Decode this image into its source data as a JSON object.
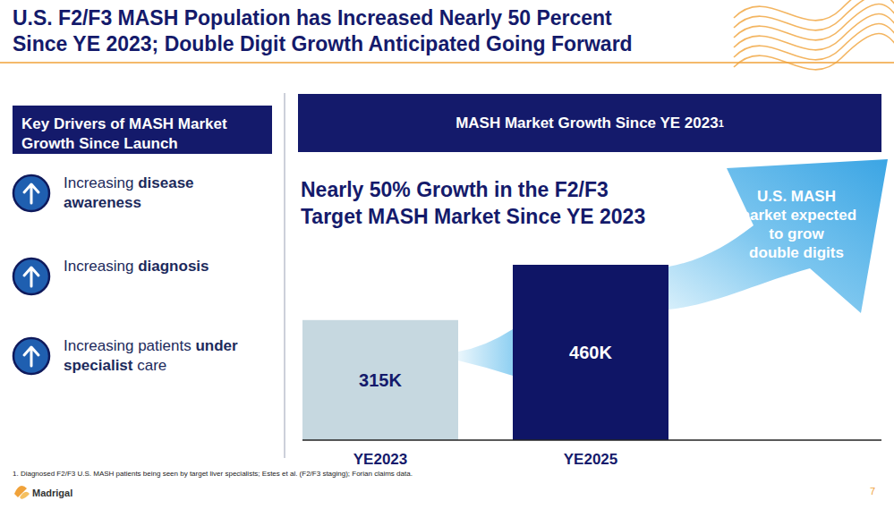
{
  "slide": {
    "title": [
      "U.S. F2/F3 MASH Population has Increased Nearly 50 Percent",
      "Since YE 2023; Double Digit Growth Anticipated Going Forward"
    ],
    "footnote": "1. Diagnosed F2/F3 U.S. MASH patients being seen by target liver specialists; Estes et al. (F2/F3 staging); Forian claims data.",
    "logo": "Madrigal",
    "page": "7"
  },
  "drivers": {
    "heading": "Key Drivers of MASH Market Growth Since Launch",
    "items": [
      [
        {
          "text": "Increasing ",
          "bold": false
        },
        {
          "text": "disease awareness",
          "bold": true
        }
      ],
      [
        {
          "text": "Increasing ",
          "bold": false
        },
        {
          "text": "diagnosis",
          "bold": true
        }
      ],
      [
        {
          "text": "Increasing patients ",
          "bold": false
        },
        {
          "text": "under specialist",
          "bold": true
        },
        {
          "text": " care",
          "bold": false
        }
      ]
    ]
  },
  "chart_data": {
    "type": "bar",
    "title": "MASH Market Growth Since YE 2023",
    "title_sup": "1",
    "categories": [
      "YE2023",
      "YE2025"
    ],
    "values": [
      315,
      460
    ],
    "value_labels": [
      "315K",
      "460K"
    ],
    "colors": [
      "#c6d8e0",
      "#0f1566"
    ],
    "data_labels": true,
    "tick_labels": "x",
    "annotations": [
      {
        "lines": [
          "Nearly 50% Growth in the F2/F3",
          "Target MASH Market Since YE 2023"
        ]
      },
      {
        "lines": [
          "U.S. MASH",
          "market expected",
          "to grow",
          "double digits"
        ]
      }
    ]
  }
}
